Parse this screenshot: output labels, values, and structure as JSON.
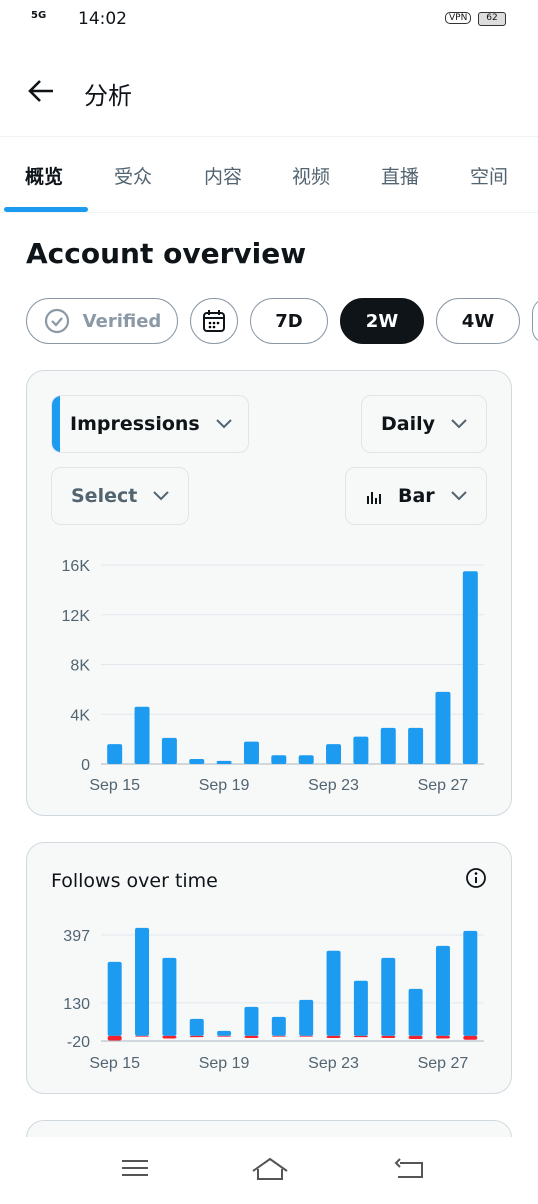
{
  "status_bar": {
    "network": "5G",
    "time": "14:02",
    "vpn": "VPN",
    "battery": "62"
  },
  "header": {
    "title": "分析"
  },
  "tabs": [
    "概览",
    "受众",
    "内容",
    "视频",
    "直播",
    "空间"
  ],
  "section_title": "Account overview",
  "chips": [
    "Verified",
    "7D",
    "2W",
    "4W"
  ],
  "filters": {
    "metric": "Impressions",
    "interval": "Daily",
    "compare": "Select",
    "chart_style": "Bar"
  },
  "chart_data": [
    {
      "type": "bar",
      "categories": [
        "Sep 15",
        null,
        null,
        null,
        "Sep 19",
        null,
        null,
        null,
        "Sep 23",
        null,
        null,
        null,
        "Sep 27",
        null
      ],
      "values": [
        1600,
        4600,
        2100,
        400,
        250,
        1800,
        700,
        700,
        1600,
        2200,
        2900,
        2900,
        5800,
        15500
      ],
      "color": "#1d9bf0",
      "ylim": [
        0,
        16000
      ],
      "yticks": [
        0,
        {
          "value": 4000,
          "label": "4K"
        },
        {
          "value": 8000,
          "label": "8K"
        },
        {
          "value": 12000,
          "label": "12K"
        },
        {
          "value": 16000,
          "label": "16K"
        }
      ],
      "grid": true
    },
    {
      "type": "bar",
      "title": "Follows over time",
      "categories": [
        "Sep 15",
        null,
        null,
        null,
        "Sep 19",
        null,
        null,
        null,
        "Sep 23",
        null,
        null,
        null,
        "Sep 27",
        null
      ],
      "series": [
        {
          "color": "#1d9bf0",
          "values": [
            291,
            425,
            307,
            67,
            20,
            114,
            75,
            142,
            335,
            217,
            307,
            185,
            354,
            413
          ]
        },
        {
          "color": "#f4212e",
          "values": [
            -18,
            -3,
            -10,
            -5,
            -3,
            -8,
            -3,
            -3,
            -8,
            -5,
            -8,
            -12,
            -10,
            -15
          ]
        }
      ],
      "ylim": [
        -20,
        430
      ],
      "yticks": [
        397,
        130,
        -20
      ],
      "grid": true
    }
  ]
}
